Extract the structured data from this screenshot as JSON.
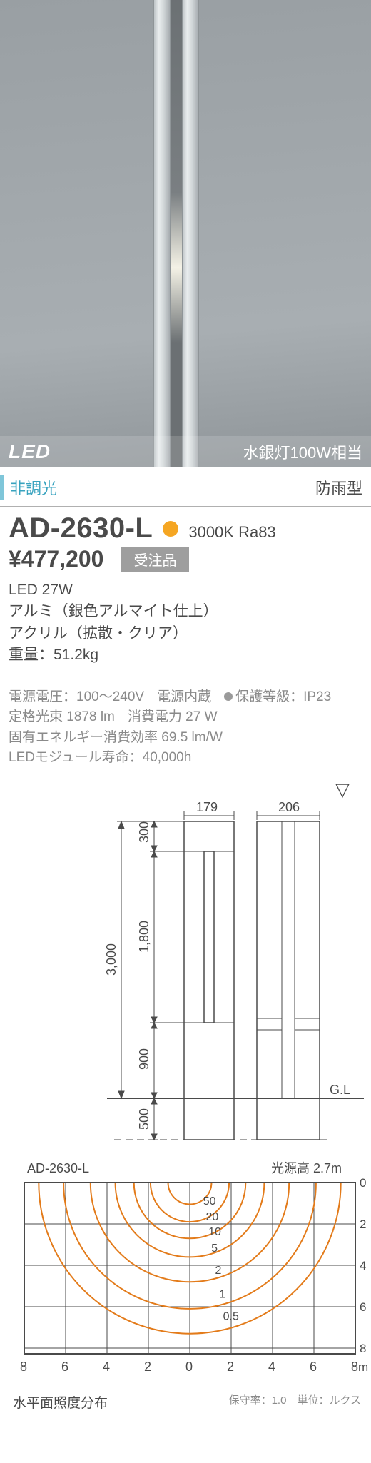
{
  "photo": {
    "led_label": "LED",
    "equivalent": "水銀灯100W相当"
  },
  "tags": {
    "dimming": "非調光",
    "rainproof": "防雨型"
  },
  "model": {
    "code": "AD-2630-L",
    "color_dot": "#f5a623",
    "color_temp": "3000K Ra83"
  },
  "price": "¥477,200",
  "order_badge": "受注品",
  "specs": [
    "LED 27W",
    "アルミ（銀色アルマイト仕上）",
    "アクリル（拡散・クリア）",
    "重量：51.2kg"
  ],
  "elec": {
    "row1": {
      "voltage": "電源電圧：100～240V",
      "psu": "電源内蔵",
      "ip": "保護等級：IP23"
    },
    "row2": {
      "flux": "定格光束 1878 lm",
      "power": "消費電力 27 W"
    },
    "row3": "固有エネルギー消費効率 69.5 lm/W",
    "row4": "LEDモジュール寿命：40,000h"
  },
  "dimension": {
    "top_w1": "179",
    "top_w2": "206",
    "h_total": "3,000",
    "h_upper": "300",
    "h_light": "1,800",
    "h_lower": "900",
    "h_buried": "500",
    "gl_label": "G.L",
    "triangle_label": "▽",
    "colors": {
      "stroke": "#4a4a4a",
      "fill": "#ffffff",
      "light": "#9a9a9a"
    }
  },
  "chart": {
    "title": "AD-2630-L",
    "height_label": "光源高 2.7m",
    "x_ticks": [
      "8",
      "6",
      "4",
      "2",
      "0",
      "2",
      "4",
      "6",
      "8"
    ],
    "y_ticks": [
      "0",
      "2",
      "4",
      "6",
      "8"
    ],
    "x_unit": "m",
    "rings": [
      {
        "label": "0.5",
        "r": 7.3
      },
      {
        "label": "1",
        "r": 6.1
      },
      {
        "label": "2",
        "r": 4.8
      },
      {
        "label": "5",
        "r": 3.6
      },
      {
        "label": "10",
        "r": 2.7
      },
      {
        "label": "20",
        "r": 1.9
      },
      {
        "label": "50",
        "r": 1.05
      }
    ],
    "colors": {
      "grid": "#4a4a4a",
      "ring": "#e37b1a",
      "bg": "#ffffff",
      "text": "#4a4a4a"
    },
    "caption": "水平面照度分布",
    "footnote": "保守率：1.0　単位：ルクス"
  }
}
